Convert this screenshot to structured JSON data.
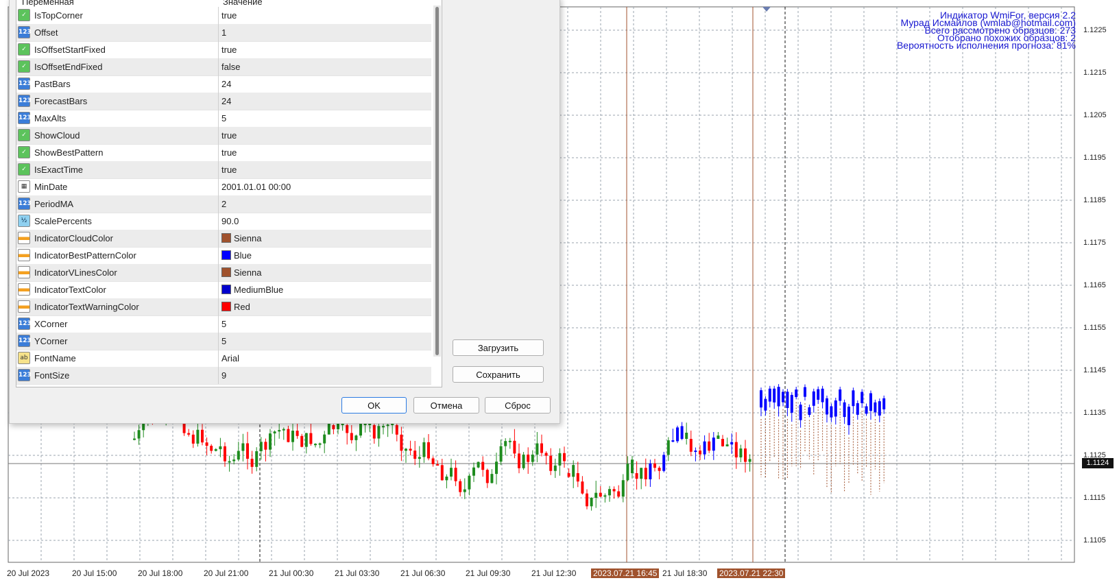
{
  "dialog": {
    "header": {
      "col_name": "Переменная",
      "col_value": "Значение"
    },
    "params": [
      {
        "name": "IsTopCorner",
        "value": "true",
        "type": "bool"
      },
      {
        "name": "Offset",
        "value": "1",
        "type": "num"
      },
      {
        "name": "IsOffsetStartFixed",
        "value": "true",
        "type": "bool"
      },
      {
        "name": "IsOffsetEndFixed",
        "value": "false",
        "type": "bool"
      },
      {
        "name": "PastBars",
        "value": "24",
        "type": "num"
      },
      {
        "name": "ForecastBars",
        "value": "24",
        "type": "num"
      },
      {
        "name": "MaxAlts",
        "value": "5",
        "type": "num"
      },
      {
        "name": "ShowCloud",
        "value": "true",
        "type": "bool"
      },
      {
        "name": "ShowBestPattern",
        "value": "true",
        "type": "bool"
      },
      {
        "name": "IsExactTime",
        "value": "true",
        "type": "bool"
      },
      {
        "name": "MinDate",
        "value": "2001.01.01 00:00",
        "type": "date"
      },
      {
        "name": "PeriodMA",
        "value": "2",
        "type": "num"
      },
      {
        "name": "ScalePercents",
        "value": "90.0",
        "type": "dbl"
      },
      {
        "name": "IndicatorCloudColor",
        "value": "Sienna",
        "type": "col",
        "color": "#a0522d"
      },
      {
        "name": "IndicatorBestPatternColor",
        "value": "Blue",
        "type": "col",
        "color": "#0000ff"
      },
      {
        "name": "IndicatorVLinesColor",
        "value": "Sienna",
        "type": "col",
        "color": "#a0522d"
      },
      {
        "name": "IndicatorTextColor",
        "value": "MediumBlue",
        "type": "col",
        "color": "#0000cd"
      },
      {
        "name": "IndicatorTextWarningColor",
        "value": "Red",
        "type": "col",
        "color": "#ff0000"
      },
      {
        "name": "XCorner",
        "value": "5",
        "type": "num"
      },
      {
        "name": "YCorner",
        "value": "5",
        "type": "num"
      },
      {
        "name": "FontName",
        "value": "Arial",
        "type": "str"
      },
      {
        "name": "FontSize",
        "value": "9",
        "type": "num"
      }
    ],
    "load_label": "Загрузить",
    "save_label": "Сохранить",
    "ok_label": "OK",
    "cancel_label": "Отмена",
    "reset_label": "Сброс"
  },
  "info_text": [
    "Индикатор WmiFor, версия 2.2",
    "Мурад Исмайлов (wmlab@hotmail.com)",
    "Всего рассмотрено образцов: 273",
    "Отобрано похожих образцов: 2",
    "Вероятность исполнения прогноза: 81%"
  ],
  "price_axis": [
    "1.1225",
    "1.1215",
    "1.1205",
    "1.1195",
    "1.1185",
    "1.1175",
    "1.1165",
    "1.1155",
    "1.1145",
    "1.1135",
    "1.1125",
    "1.1115",
    "1.1105"
  ],
  "current_price": "1.1124",
  "time_axis": [
    {
      "label": "20 Jul 2023",
      "hl": false
    },
    {
      "label": "20 Jul 15:00",
      "hl": false
    },
    {
      "label": "20 Jul 18:00",
      "hl": false
    },
    {
      "label": "20 Jul 21:00",
      "hl": false
    },
    {
      "label": "21 Jul 00:30",
      "hl": false
    },
    {
      "label": "21 Jul 03:30",
      "hl": false
    },
    {
      "label": "21 Jul 06:30",
      "hl": false
    },
    {
      "label": "21 Jul 09:30",
      "hl": false
    },
    {
      "label": "21 Jul 12:30",
      "hl": false
    },
    {
      "label": "2023.07.21 16:45",
      "hl": true
    },
    {
      "label": "21 Jul 18:30",
      "hl": false
    },
    {
      "label": "2023.07.21 22:30",
      "hl": true
    }
  ],
  "colors": {
    "up": "#1e8c1e",
    "down": "#ff0000",
    "pattern": "#0000ff",
    "vline": "#a0522d",
    "cloud": "#a0522d",
    "info": "#1818d0"
  }
}
